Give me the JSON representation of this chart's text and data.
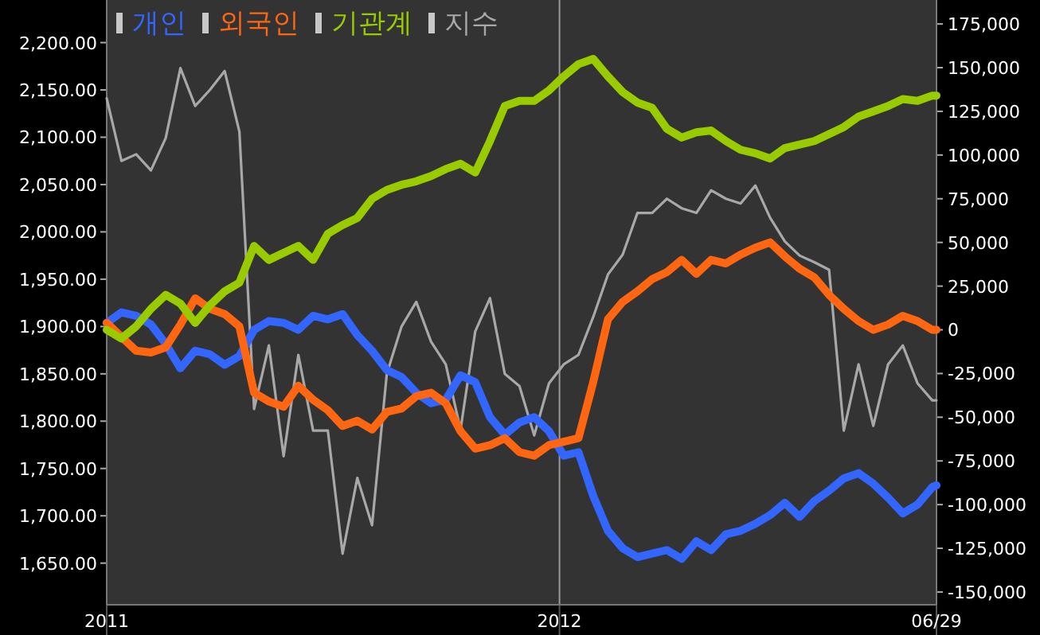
{
  "chart_data": {
    "type": "line",
    "x": [
      "2011-06-01",
      "2011-06-08",
      "2011-06-15",
      "2011-06-22",
      "2011-06-29",
      "2011-07-06",
      "2011-07-13",
      "2011-07-20",
      "2011-07-27",
      "2011-08-03",
      "2011-08-10",
      "2011-08-17",
      "2011-08-24",
      "2011-08-31",
      "2011-09-07",
      "2011-09-14",
      "2011-09-21",
      "2011-09-28",
      "2011-10-05",
      "2011-10-12",
      "2011-10-19",
      "2011-10-26",
      "2011-11-02",
      "2011-11-09",
      "2011-11-16",
      "2011-11-23",
      "2011-11-30",
      "2011-12-07",
      "2011-12-14",
      "2011-12-21",
      "2011-12-28",
      "2012-01-04",
      "2012-01-11",
      "2012-01-18",
      "2012-01-25",
      "2012-02-01",
      "2012-02-08",
      "2012-02-15",
      "2012-02-22",
      "2012-02-29",
      "2012-03-07",
      "2012-03-14",
      "2012-03-21",
      "2012-03-28",
      "2012-04-04",
      "2012-04-11",
      "2012-04-18",
      "2012-04-25",
      "2012-05-02",
      "2012-05-09",
      "2012-05-16",
      "2012-05-23",
      "2012-05-30",
      "2012-06-06",
      "2012-06-13",
      "2012-06-20",
      "2012-06-27",
      "2012-06-29"
    ],
    "series": [
      {
        "name": "개인",
        "color": "#3366ff",
        "axis": "y2",
        "values": [
          4000,
          10000,
          8000,
          3000,
          -8000,
          -22000,
          -12000,
          -14000,
          -20000,
          -15000,
          0,
          5000,
          4000,
          0,
          8000,
          6000,
          9000,
          -3000,
          -12000,
          -23000,
          -27000,
          -36000,
          -42000,
          -40000,
          -26000,
          -30000,
          -50000,
          -60000,
          -53000,
          -50000,
          -58000,
          -72000,
          -70000,
          -95000,
          -115000,
          -125000,
          -130000,
          -128000,
          -126000,
          -131000,
          -121000,
          -126000,
          -117000,
          -115000,
          -111000,
          -106000,
          -99000,
          -107000,
          -98000,
          -92000,
          -85000,
          -82000,
          -88000,
          -96000,
          -105000,
          -100000,
          -90000,
          -89000
        ]
      },
      {
        "name": "외국인",
        "color": "#ff6611",
        "axis": "y2",
        "values": [
          4000,
          -4000,
          -12000,
          -13000,
          -10000,
          3000,
          18000,
          12000,
          9000,
          2000,
          -36000,
          -41000,
          -44000,
          -32000,
          -40000,
          -46000,
          -55000,
          -52000,
          -57000,
          -47000,
          -45000,
          -38000,
          -36000,
          -42000,
          -58000,
          -68000,
          -66000,
          -62000,
          -70000,
          -72000,
          -66000,
          -64000,
          -62000,
          -30000,
          6000,
          16000,
          22000,
          29000,
          33000,
          40000,
          32000,
          40000,
          38000,
          43000,
          47000,
          50000,
          42000,
          35000,
          30000,
          20000,
          12000,
          5000,
          0,
          3000,
          8000,
          5000,
          0,
          0
        ]
      },
      {
        "name": "기관계",
        "color": "#99cc00",
        "axis": "y2",
        "values": [
          0,
          -5000,
          2000,
          12000,
          20000,
          15000,
          4000,
          14000,
          22000,
          27000,
          48000,
          40000,
          44000,
          48000,
          40000,
          55000,
          60000,
          64000,
          75000,
          80000,
          83000,
          85000,
          88000,
          92000,
          95000,
          90000,
          108000,
          128000,
          131000,
          131000,
          137000,
          145000,
          152000,
          155000,
          145000,
          136000,
          130000,
          127000,
          115000,
          110000,
          113000,
          114000,
          108000,
          103000,
          101000,
          98000,
          104000,
          106000,
          108000,
          112000,
          116000,
          122000,
          125000,
          128000,
          132000,
          131000,
          134000,
          134000
        ]
      },
      {
        "name": "지수",
        "color": "#a8a8a8",
        "values": [
          2141,
          2075,
          2082,
          2065,
          2099,
          2173,
          2133,
          2150,
          2170,
          2106,
          1813,
          1880,
          1763,
          1870,
          1790,
          1790,
          1660,
          1740,
          1690,
          1850,
          1900,
          1926,
          1884,
          1860,
          1791,
          1895,
          1930,
          1850,
          1837,
          1785,
          1840,
          1860,
          1870,
          1910,
          1955,
          1976,
          2020,
          2020,
          2035,
          2025,
          2020,
          2044,
          2035,
          2030,
          2049,
          2015,
          1990,
          1975,
          1968,
          1960,
          1790,
          1860,
          1795,
          1860,
          1880,
          1840,
          1822,
          1822
        ]
      }
    ],
    "xlim": [
      "2011-06-01",
      "2012-06-29"
    ],
    "xticks": [
      {
        "value": "2011-06-01",
        "label": "2011"
      },
      {
        "value": "2012-01-02",
        "label": "2012"
      },
      {
        "value": "2012-06-29",
        "label": "06/29"
      }
    ],
    "ylim": [
      1606,
      2245
    ],
    "yticks": [
      {
        "value": 1650,
        "label": "1,650.00"
      },
      {
        "value": 1700,
        "label": "1,700.00"
      },
      {
        "value": 1750,
        "label": "1,750.00"
      },
      {
        "value": 1800,
        "label": "1,800.00"
      },
      {
        "value": 1850,
        "label": "1,850.00"
      },
      {
        "value": 1900,
        "label": "1,900.00"
      },
      {
        "value": 1950,
        "label": "1,950.00"
      },
      {
        "value": 2000,
        "label": "2,000.00"
      },
      {
        "value": 2050,
        "label": "2,050.00"
      },
      {
        "value": 2100,
        "label": "2,100.00"
      },
      {
        "value": 2150,
        "label": "2,150.00"
      },
      {
        "value": 2200,
        "label": "2,200.00"
      }
    ],
    "y2lim": [
      -157300,
      188700
    ],
    "y2ticks": [
      {
        "value": -150000,
        "label": "-150,000"
      },
      {
        "value": -125000,
        "label": "-125,000"
      },
      {
        "value": -100000,
        "label": "-100,000"
      },
      {
        "value": -75000,
        "label": "-75,000"
      },
      {
        "value": -50000,
        "label": "-50,000"
      },
      {
        "value": -25000,
        "label": "-25,000"
      },
      0,
      {
        "value": 25000,
        "label": "25,000"
      },
      {
        "value": 50000,
        "label": "50,000"
      },
      {
        "value": 75000,
        "label": "75,000"
      },
      {
        "value": 100000,
        "label": "100,000"
      },
      {
        "value": 125000,
        "label": "125,000"
      },
      {
        "value": 150000,
        "label": "150,000"
      },
      {
        "value": 175000,
        "label": "175,000"
      }
    ],
    "ref_lines": [
      {
        "axis": "x",
        "value": "2012-01-02",
        "color": "#9a9a9a"
      }
    ],
    "legend": "top left",
    "marker": "none",
    "line_style": "solid"
  }
}
